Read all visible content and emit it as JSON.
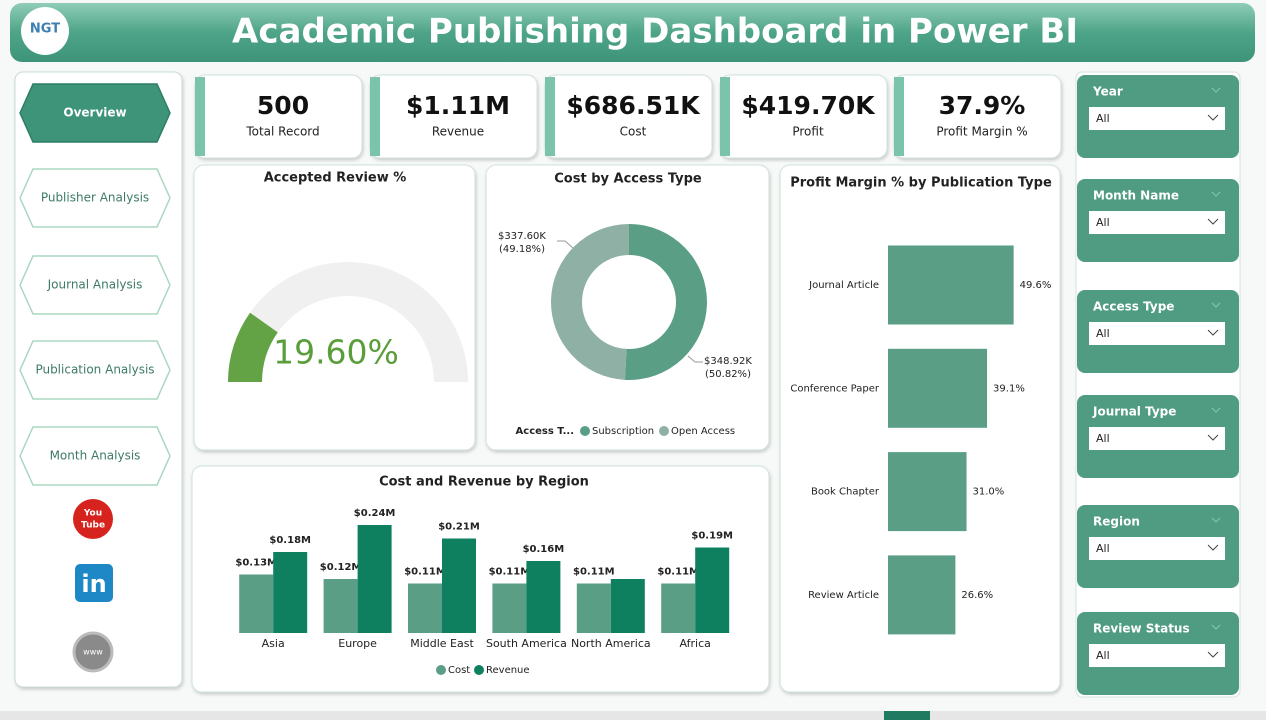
{
  "header": {
    "title": "Academic Publishing Dashboard in Power BI",
    "logo": "NGT"
  },
  "nav": [
    "Overview",
    "Publisher Analysis",
    "Journal Analysis",
    "Publication Analysis",
    "Month Analysis"
  ],
  "social": {
    "youtube": [
      "You",
      "Tube"
    ],
    "linkedin": "in",
    "web": "www"
  },
  "kpis": [
    {
      "value": "500",
      "label": "Total Record"
    },
    {
      "value": "$1.11M",
      "label": "Revenue"
    },
    {
      "value": "$686.51K",
      "label": "Cost"
    },
    {
      "value": "$419.70K",
      "label": "Profit"
    },
    {
      "value": "37.9%",
      "label": "Profit Margin %"
    }
  ],
  "slicers": [
    {
      "label": "Year",
      "value": "All"
    },
    {
      "label": "Month Name",
      "value": "All"
    },
    {
      "label": "Access Type",
      "value": "All"
    },
    {
      "label": "Journal Type",
      "value": "All"
    },
    {
      "label": "Region",
      "value": "All"
    },
    {
      "label": "Review Status",
      "value": "All"
    }
  ],
  "chart_data": [
    {
      "type": "gauge",
      "title": "Accepted Review %",
      "values": [
        19.6
      ],
      "value_labels": [
        "19.60%"
      ],
      "ylim": [
        0,
        100
      ],
      "color": "#63a345",
      "track_color": "#f1f0f0"
    },
    {
      "type": "donut",
      "title": "Cost by Access Type",
      "legend_title": "Access T...",
      "categories": [
        "Subscription",
        "Open Access"
      ],
      "values": [
        348920,
        337600
      ],
      "value_labels": [
        "$348.92K",
        "$337.60K"
      ],
      "percent_labels": [
        "(50.82%)",
        "(49.18%)"
      ],
      "colors": [
        "#5a9e86",
        "#8fb0a4"
      ]
    },
    {
      "type": "bar",
      "title": "Cost and Revenue by Region",
      "categories": [
        "Asia",
        "Europe",
        "Middle East",
        "South America",
        "North America",
        "Africa"
      ],
      "series": [
        {
          "name": "Cost",
          "color": "#5a9e86",
          "values": [
            0.13,
            0.12,
            0.11,
            0.11,
            0.11,
            0.11
          ],
          "value_labels": [
            "$0.13M",
            "$0.12M",
            "$0.11M",
            "$0.11M",
            "$0.11M",
            "$0.11M"
          ]
        },
        {
          "name": "Revenue",
          "color": "#0e8060",
          "values": [
            0.18,
            0.24,
            0.21,
            0.16,
            0.12,
            0.19
          ],
          "value_labels": [
            "$0.18M",
            "$0.24M",
            "$0.21M",
            "$0.16M",
            null,
            "$0.19M"
          ]
        }
      ],
      "ylim": [
        0,
        0.26
      ]
    },
    {
      "type": "hbar",
      "title": "Profit Margin % by Publication Type",
      "categories": [
        "Journal Article",
        "Conference Paper",
        "Book Chapter",
        "Review Article"
      ],
      "values": [
        49.6,
        39.1,
        31.0,
        26.6
      ],
      "value_labels": [
        "49.6%",
        "39.1%",
        "31.0%",
        "26.6%"
      ],
      "xlim": [
        0,
        60
      ],
      "color": "#5a9e86"
    }
  ]
}
